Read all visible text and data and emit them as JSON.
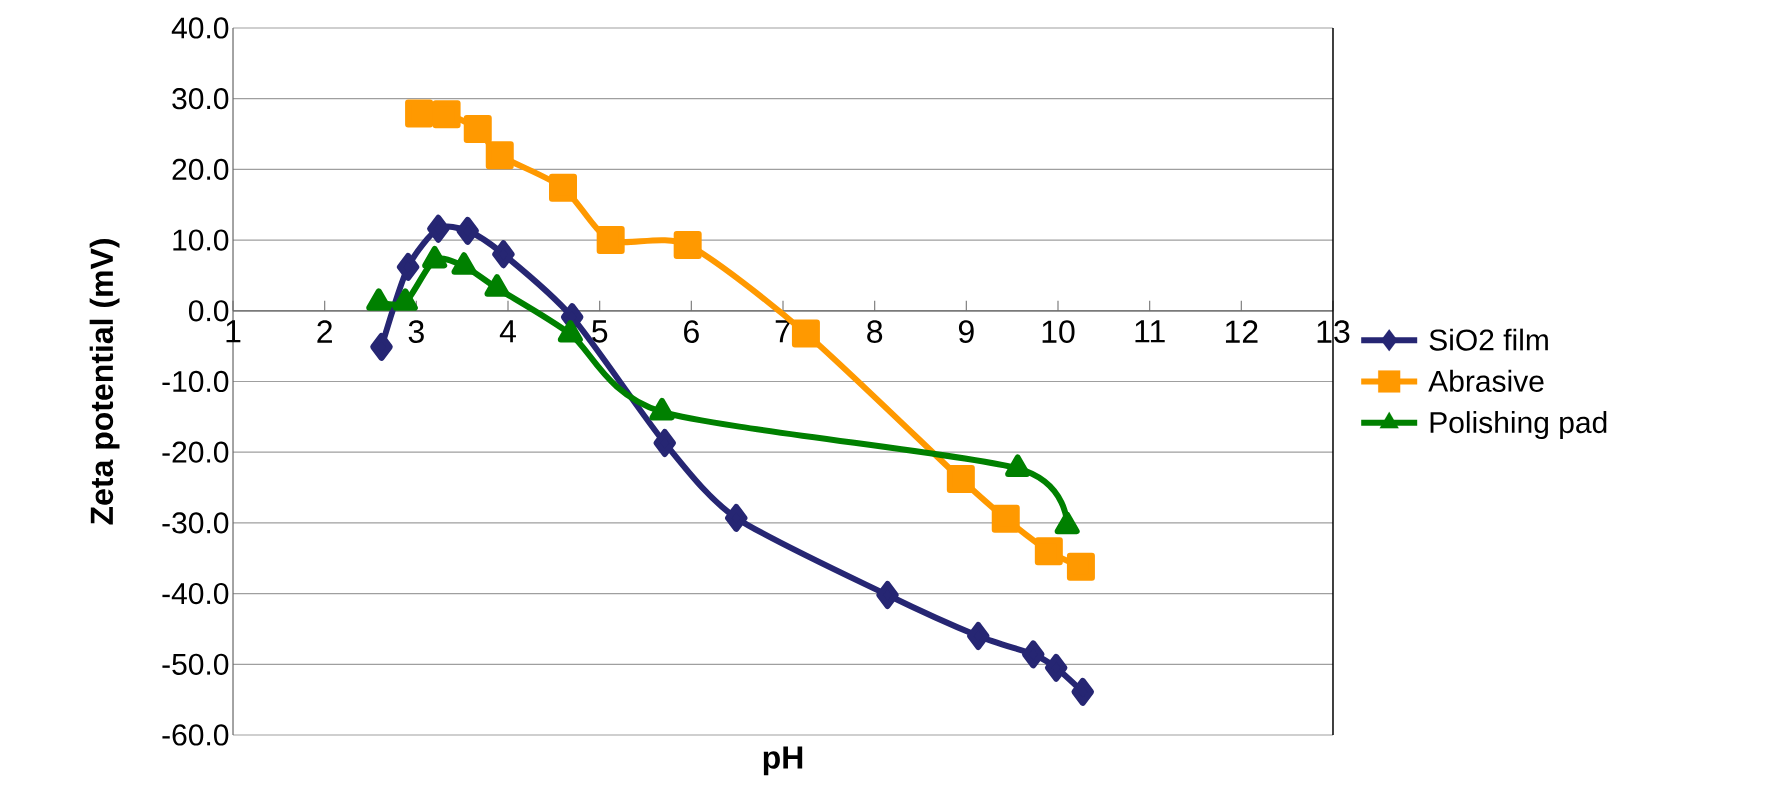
{
  "chart_data": {
    "type": "line",
    "xlabel": "pH",
    "ylabel": "Zeta potential (mV)",
    "xlim": [
      1,
      13
    ],
    "xticks": [
      1,
      2,
      3,
      4,
      5,
      6,
      7,
      8,
      9,
      10,
      11,
      12,
      13
    ],
    "ylim": [
      -60,
      40
    ],
    "yticks": [
      {
        "value": -60,
        "label": "-60.0"
      },
      {
        "value": -50,
        "label": "-50.0"
      },
      {
        "value": -40,
        "label": "-40.0"
      },
      {
        "value": -30,
        "label": "-30.0"
      },
      {
        "value": -20,
        "label": "-20.0"
      },
      {
        "value": -10,
        "label": "-10.0"
      },
      {
        "value": 0,
        "label": "0.0"
      },
      {
        "value": 10,
        "label": "10.0"
      },
      {
        "value": 20,
        "label": "20.0"
      },
      {
        "value": 30,
        "label": "30.0"
      },
      {
        "value": 40,
        "label": "40.0"
      }
    ],
    "grid": "y",
    "legend": "right",
    "line_style": "solid",
    "series": [
      {
        "name": "SiO2 film",
        "color": "#262673",
        "marker": "diamond",
        "x": [
          2.62,
          2.91,
          3.24,
          3.56,
          3.95,
          4.7,
          5.71,
          6.49,
          8.14,
          9.13,
          9.73,
          9.98,
          10.27
        ],
        "values": [
          -5.1,
          6.2,
          11.6,
          11.3,
          8.0,
          -0.9,
          -18.7,
          -29.3,
          -40.2,
          -46.0,
          -48.6,
          -50.5,
          -53.9
        ]
      },
      {
        "name": "Abrasive",
        "color": "#ff9900",
        "marker": "square",
        "x": [
          3.03,
          3.33,
          3.67,
          3.91,
          4.6,
          5.12,
          5.96,
          7.25,
          8.94,
          9.43,
          9.9,
          10.25
        ],
        "values": [
          27.9,
          27.8,
          25.7,
          22.0,
          17.4,
          10.0,
          9.3,
          -3.2,
          -23.8,
          -29.4,
          -34.0,
          -36.2
        ]
      },
      {
        "name": "Polishing pad",
        "color": "#008000",
        "marker": "triangle",
        "x": [
          2.59,
          2.88,
          3.2,
          3.52,
          3.88,
          4.68,
          5.68,
          9.56,
          10.1
        ],
        "values": [
          1.2,
          1.2,
          7.2,
          6.3,
          3.2,
          -3.3,
          -14.3,
          -22.3,
          -30.4
        ]
      }
    ]
  }
}
